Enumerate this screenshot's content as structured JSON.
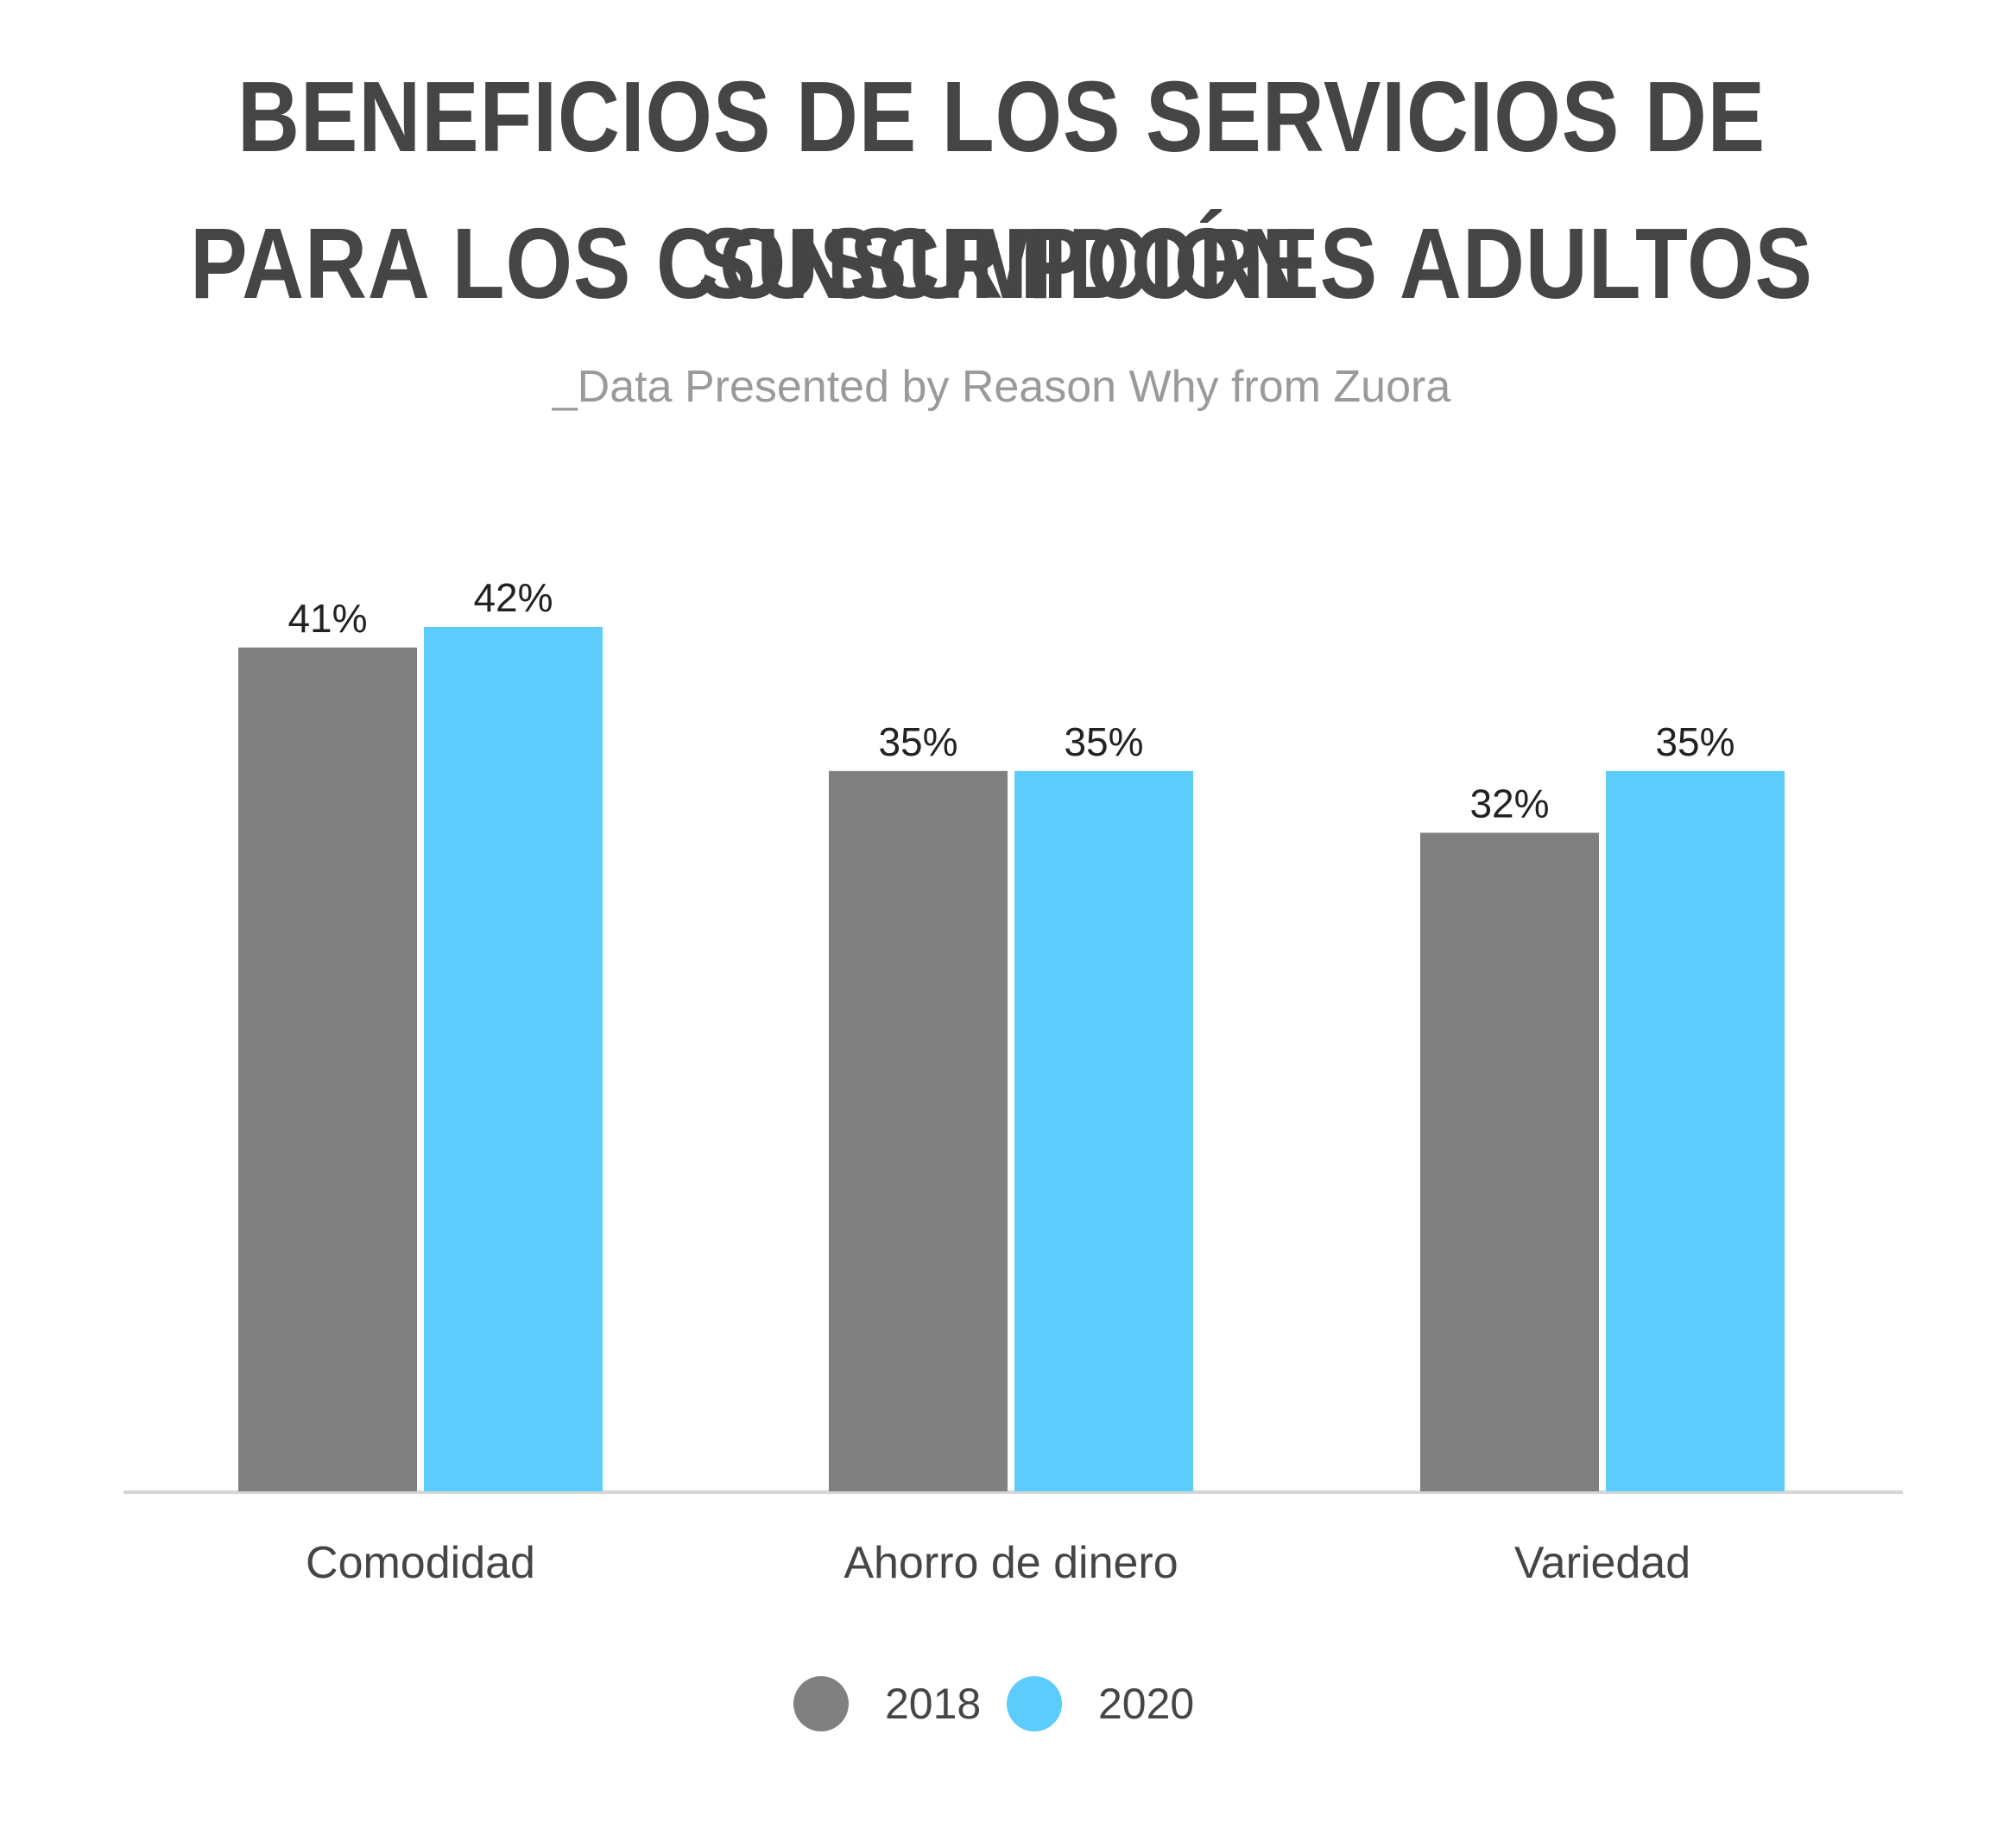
{
  "header": {
    "title_line1": "BENEFICIOS DE LOS SERVICIOS DE SUSCRIPCIÓN",
    "title_line2": "PARA LOS CONSUMIDORES ADULTOS",
    "subtitle": "_Data Presented by Reason Why from Zuora"
  },
  "chart_data": {
    "type": "bar",
    "title": "BENEFICIOS DE LOS SERVICIOS DE SUSCRIPCIÓN PARA LOS CONSUMIDORES ADULTOS",
    "subtitle": "_Data Presented by Reason Why from Zuora",
    "categories": [
      "Comodidad",
      "Ahorro de dinero",
      "Variedad"
    ],
    "series": [
      {
        "name": "2018",
        "values": [
          41,
          35,
          32
        ],
        "labels": [
          "41%",
          "35%",
          "32%"
        ],
        "color": "#808080"
      },
      {
        "name": "2020",
        "values": [
          42,
          35,
          35
        ],
        "labels": [
          "42%",
          "35%",
          "35%"
        ],
        "color": "#5BCCFC"
      }
    ],
    "ylim": [
      0,
      42
    ],
    "grid": false,
    "legend_position": "bottom-center",
    "xlabel": "",
    "ylabel": ""
  }
}
